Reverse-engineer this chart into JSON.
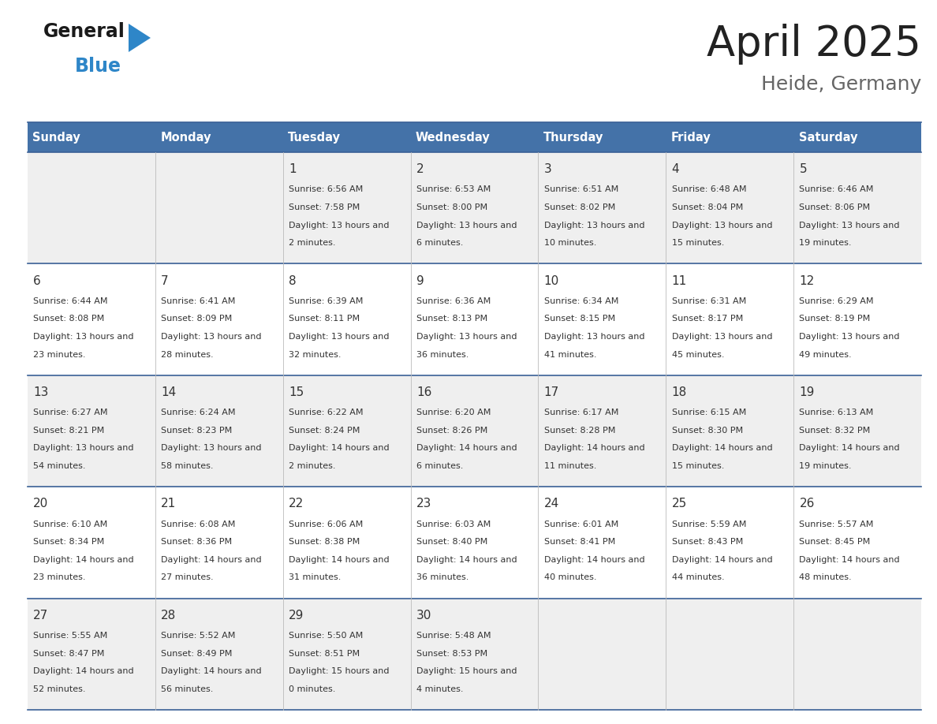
{
  "title": "April 2025",
  "subtitle": "Heide, Germany",
  "header_color": "#4472A8",
  "header_text_color": "#FFFFFF",
  "cell_bg_row0": "#EFEFEF",
  "cell_bg_row1": "#FFFFFF",
  "cell_bg_row2": "#EFEFEF",
  "cell_bg_row3": "#FFFFFF",
  "cell_bg_row4": "#EFEFEF",
  "day_names": [
    "Sunday",
    "Monday",
    "Tuesday",
    "Wednesday",
    "Thursday",
    "Friday",
    "Saturday"
  ],
  "days": [
    {
      "day": 1,
      "col": 2,
      "row": 0,
      "sunrise": "6:56 AM",
      "sunset": "7:58 PM",
      "daylight": "13 hours and 2 minutes."
    },
    {
      "day": 2,
      "col": 3,
      "row": 0,
      "sunrise": "6:53 AM",
      "sunset": "8:00 PM",
      "daylight": "13 hours and 6 minutes."
    },
    {
      "day": 3,
      "col": 4,
      "row": 0,
      "sunrise": "6:51 AM",
      "sunset": "8:02 PM",
      "daylight": "13 hours and 10 minutes."
    },
    {
      "day": 4,
      "col": 5,
      "row": 0,
      "sunrise": "6:48 AM",
      "sunset": "8:04 PM",
      "daylight": "13 hours and 15 minutes."
    },
    {
      "day": 5,
      "col": 6,
      "row": 0,
      "sunrise": "6:46 AM",
      "sunset": "8:06 PM",
      "daylight": "13 hours and 19 minutes."
    },
    {
      "day": 6,
      "col": 0,
      "row": 1,
      "sunrise": "6:44 AM",
      "sunset": "8:08 PM",
      "daylight": "13 hours and 23 minutes."
    },
    {
      "day": 7,
      "col": 1,
      "row": 1,
      "sunrise": "6:41 AM",
      "sunset": "8:09 PM",
      "daylight": "13 hours and 28 minutes."
    },
    {
      "day": 8,
      "col": 2,
      "row": 1,
      "sunrise": "6:39 AM",
      "sunset": "8:11 PM",
      "daylight": "13 hours and 32 minutes."
    },
    {
      "day": 9,
      "col": 3,
      "row": 1,
      "sunrise": "6:36 AM",
      "sunset": "8:13 PM",
      "daylight": "13 hours and 36 minutes."
    },
    {
      "day": 10,
      "col": 4,
      "row": 1,
      "sunrise": "6:34 AM",
      "sunset": "8:15 PM",
      "daylight": "13 hours and 41 minutes."
    },
    {
      "day": 11,
      "col": 5,
      "row": 1,
      "sunrise": "6:31 AM",
      "sunset": "8:17 PM",
      "daylight": "13 hours and 45 minutes."
    },
    {
      "day": 12,
      "col": 6,
      "row": 1,
      "sunrise": "6:29 AM",
      "sunset": "8:19 PM",
      "daylight": "13 hours and 49 minutes."
    },
    {
      "day": 13,
      "col": 0,
      "row": 2,
      "sunrise": "6:27 AM",
      "sunset": "8:21 PM",
      "daylight": "13 hours and 54 minutes."
    },
    {
      "day": 14,
      "col": 1,
      "row": 2,
      "sunrise": "6:24 AM",
      "sunset": "8:23 PM",
      "daylight": "13 hours and 58 minutes."
    },
    {
      "day": 15,
      "col": 2,
      "row": 2,
      "sunrise": "6:22 AM",
      "sunset": "8:24 PM",
      "daylight": "14 hours and 2 minutes."
    },
    {
      "day": 16,
      "col": 3,
      "row": 2,
      "sunrise": "6:20 AM",
      "sunset": "8:26 PM",
      "daylight": "14 hours and 6 minutes."
    },
    {
      "day": 17,
      "col": 4,
      "row": 2,
      "sunrise": "6:17 AM",
      "sunset": "8:28 PM",
      "daylight": "14 hours and 11 minutes."
    },
    {
      "day": 18,
      "col": 5,
      "row": 2,
      "sunrise": "6:15 AM",
      "sunset": "8:30 PM",
      "daylight": "14 hours and 15 minutes."
    },
    {
      "day": 19,
      "col": 6,
      "row": 2,
      "sunrise": "6:13 AM",
      "sunset": "8:32 PM",
      "daylight": "14 hours and 19 minutes."
    },
    {
      "day": 20,
      "col": 0,
      "row": 3,
      "sunrise": "6:10 AM",
      "sunset": "8:34 PM",
      "daylight": "14 hours and 23 minutes."
    },
    {
      "day": 21,
      "col": 1,
      "row": 3,
      "sunrise": "6:08 AM",
      "sunset": "8:36 PM",
      "daylight": "14 hours and 27 minutes."
    },
    {
      "day": 22,
      "col": 2,
      "row": 3,
      "sunrise": "6:06 AM",
      "sunset": "8:38 PM",
      "daylight": "14 hours and 31 minutes."
    },
    {
      "day": 23,
      "col": 3,
      "row": 3,
      "sunrise": "6:03 AM",
      "sunset": "8:40 PM",
      "daylight": "14 hours and 36 minutes."
    },
    {
      "day": 24,
      "col": 4,
      "row": 3,
      "sunrise": "6:01 AM",
      "sunset": "8:41 PM",
      "daylight": "14 hours and 40 minutes."
    },
    {
      "day": 25,
      "col": 5,
      "row": 3,
      "sunrise": "5:59 AM",
      "sunset": "8:43 PM",
      "daylight": "14 hours and 44 minutes."
    },
    {
      "day": 26,
      "col": 6,
      "row": 3,
      "sunrise": "5:57 AM",
      "sunset": "8:45 PM",
      "daylight": "14 hours and 48 minutes."
    },
    {
      "day": 27,
      "col": 0,
      "row": 4,
      "sunrise": "5:55 AM",
      "sunset": "8:47 PM",
      "daylight": "14 hours and 52 minutes."
    },
    {
      "day": 28,
      "col": 1,
      "row": 4,
      "sunrise": "5:52 AM",
      "sunset": "8:49 PM",
      "daylight": "14 hours and 56 minutes."
    },
    {
      "day": 29,
      "col": 2,
      "row": 4,
      "sunrise": "5:50 AM",
      "sunset": "8:51 PM",
      "daylight": "15 hours and 0 minutes."
    },
    {
      "day": 30,
      "col": 3,
      "row": 4,
      "sunrise": "5:48 AM",
      "sunset": "8:53 PM",
      "daylight": "15 hours and 4 minutes."
    }
  ],
  "n_rows": 5,
  "n_cols": 7,
  "logo_text_general": "General",
  "logo_text_blue": "Blue",
  "logo_color_general": "#1a1a1a",
  "logo_color_blue": "#2e86c8",
  "logo_triangle_color": "#2e86c8",
  "border_color": "#3a6096",
  "text_color": "#333333",
  "fig_width": 11.88,
  "fig_height": 9.18,
  "dpi": 100
}
